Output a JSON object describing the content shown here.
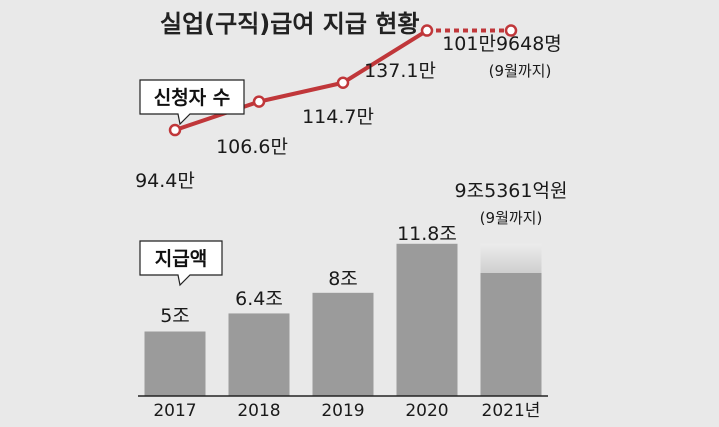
{
  "title": "실업(구직)급여 지급 현황",
  "colors": {
    "background": "#e9e9e9",
    "line": "#c0373a",
    "bar": "#9b9b9b",
    "bar_partial_light": "#cfcfcf",
    "baseline": "#222222"
  },
  "chart_data": [
    {
      "type": "line",
      "legend_label": "신청자 수",
      "categories": [
        "2017",
        "2018",
        "2019",
        "2020",
        "2021년"
      ],
      "values": [
        94.4,
        106.6,
        114.7,
        137.1,
        101.9648
      ],
      "value_labels": [
        "94.4만",
        "106.6만",
        "114.7만",
        "137.1만",
        "101만9648명"
      ],
      "last_note": "(9월까지)",
      "last_segment_dashed": true
    },
    {
      "type": "bar",
      "legend_label": "지급액",
      "categories": [
        "2017",
        "2018",
        "2019",
        "2020",
        "2021년"
      ],
      "values": [
        5,
        6.4,
        8,
        11.8,
        9.5361
      ],
      "value_labels": [
        "5조",
        "6.4조",
        "8조",
        "11.8조",
        "9조5361억원"
      ],
      "last_note": "(9월까지)",
      "last_bar_partial": true
    }
  ]
}
